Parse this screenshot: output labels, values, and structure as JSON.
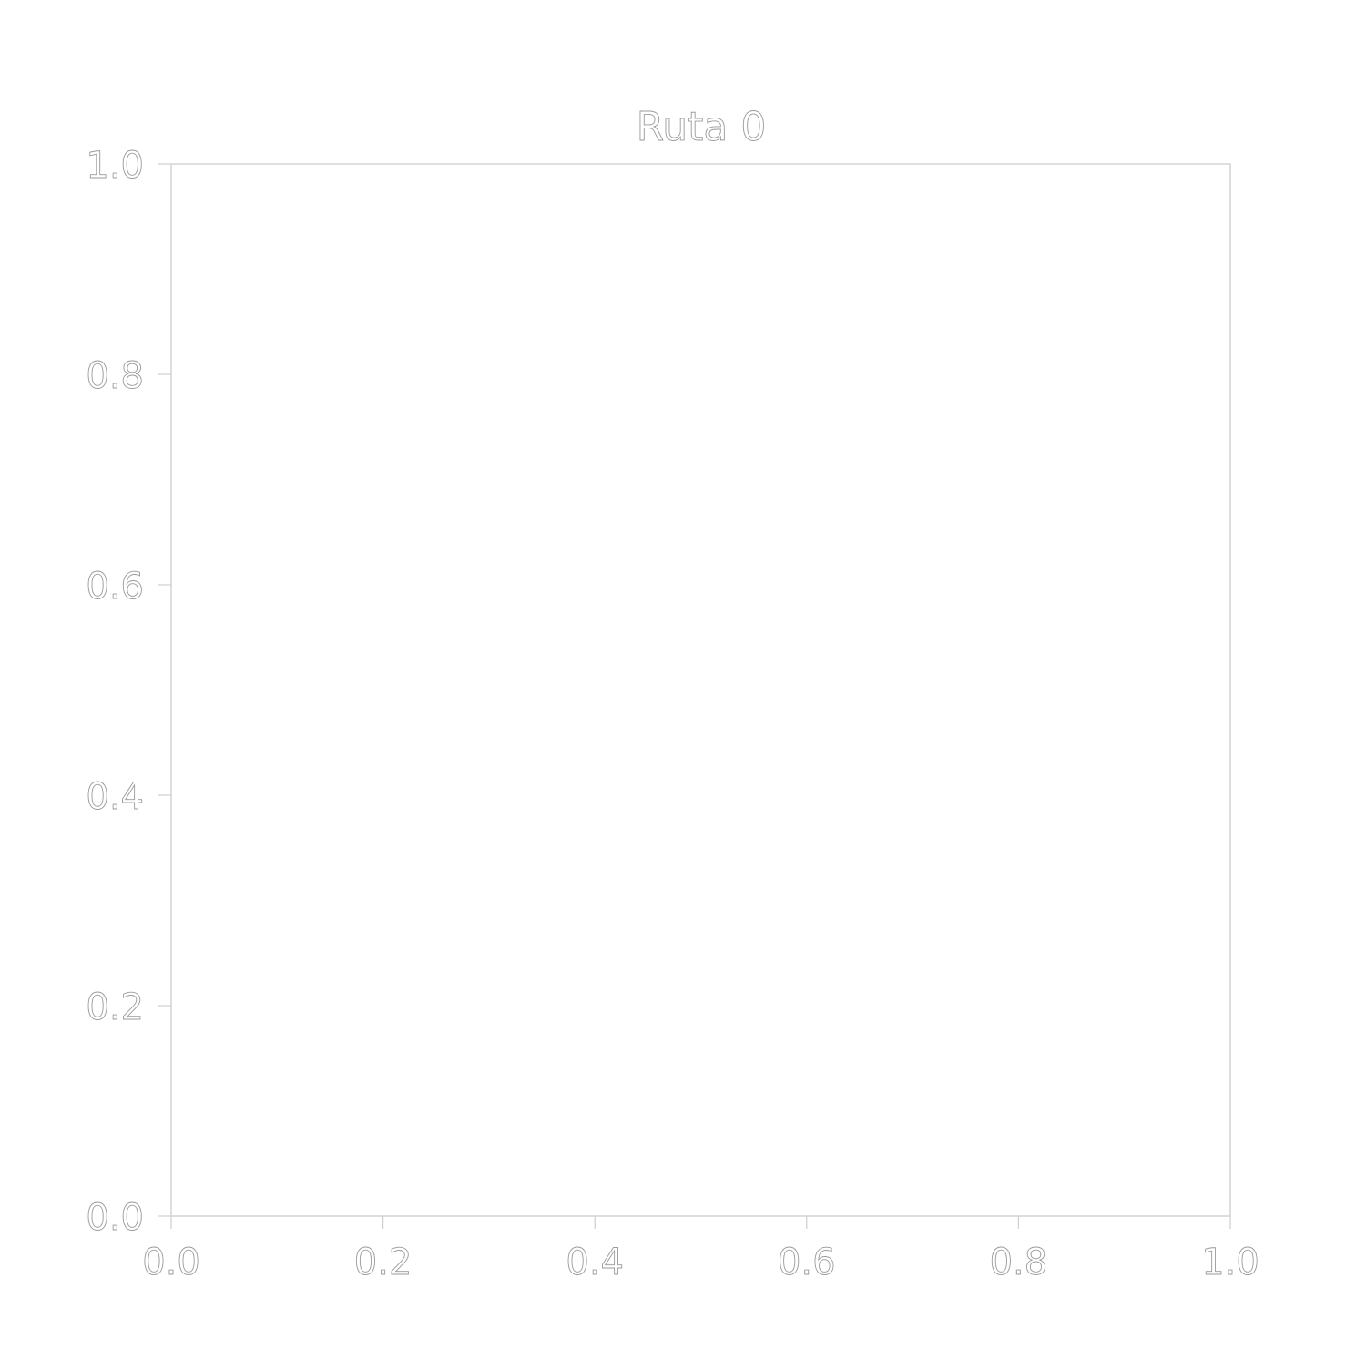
{
  "chart_data": {
    "type": "line",
    "title": "Ruta 0",
    "xlabel": "",
    "ylabel": "",
    "xlim": [
      0.0,
      1.0
    ],
    "ylim": [
      0.0,
      1.0
    ],
    "x_ticks": [
      "0.0",
      "0.2",
      "0.4",
      "0.6",
      "0.8",
      "1.0"
    ],
    "y_ticks": [
      "0.0",
      "0.2",
      "0.4",
      "0.6",
      "0.8",
      "1.0"
    ],
    "x_tick_values": [
      0.0,
      0.2,
      0.4,
      0.6,
      0.8,
      1.0
    ],
    "y_tick_values": [
      0.0,
      0.2,
      0.4,
      0.6,
      0.8,
      1.0
    ],
    "grid": false,
    "legend": "none",
    "series": []
  },
  "colors": {
    "background": "#ffffff",
    "axis": "#d6d6d6",
    "text_outline": "#9a9a9a"
  }
}
